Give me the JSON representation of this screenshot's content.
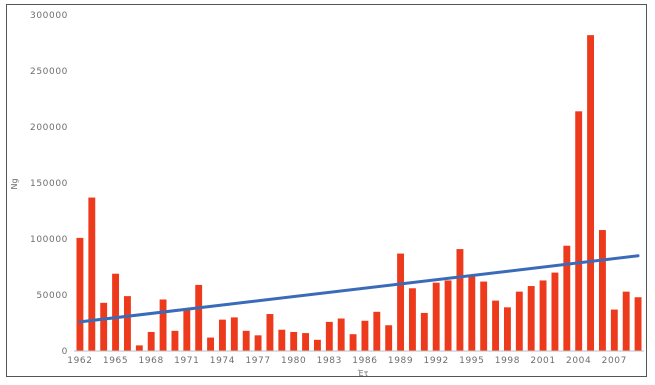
{
  "chart_data": {
    "type": "bar",
    "title": "",
    "xlabel": "Έτ",
    "ylabel": "Ng",
    "ylim": [
      0,
      300000
    ],
    "yticks": [
      0,
      50000,
      100000,
      150000,
      200000,
      250000,
      300000
    ],
    "ytick_labels": [
      "0",
      "50000",
      "100000",
      "150000",
      "200000",
      "250000",
      "300000"
    ],
    "categories": [
      1962,
      1963,
      1964,
      1965,
      1966,
      1967,
      1968,
      1969,
      1970,
      1971,
      1972,
      1973,
      1974,
      1975,
      1976,
      1977,
      1978,
      1979,
      1980,
      1981,
      1982,
      1983,
      1984,
      1985,
      1986,
      1987,
      1988,
      1989,
      1990,
      1991,
      1992,
      1993,
      1994,
      1995,
      1996,
      1997,
      1998,
      1999,
      2000,
      2001,
      2002,
      2003,
      2004,
      2005,
      2006,
      2007,
      2008,
      2009
    ],
    "xtick_labels": [
      "1962",
      "1965",
      "1968",
      "1971",
      "1974",
      "1977",
      "1980",
      "1983",
      "1986",
      "1989",
      "1992",
      "1995",
      "1998",
      "2001",
      "2004",
      "2007"
    ],
    "series": [
      {
        "values": [
          101000,
          137000,
          43000,
          69000,
          49000,
          5000,
          17000,
          46000,
          18000,
          37000,
          59000,
          12000,
          28000,
          30000,
          18000,
          14000,
          33000,
          19000,
          17000,
          16000,
          10000,
          26000,
          29000,
          15000,
          27000,
          35000,
          23000,
          87000,
          56000,
          34000,
          61000,
          63000,
          91000,
          67000,
          62000,
          45000,
          39000,
          53000,
          58000,
          63000,
          70000,
          94000,
          214000,
          282000,
          108000,
          37000,
          53000,
          48000
        ],
        "color": "#ee3a1c"
      }
    ],
    "trendline": {
      "start": 26000,
      "end": 85000,
      "color": "#3a6bb8"
    },
    "legend": "none",
    "grid": false
  }
}
